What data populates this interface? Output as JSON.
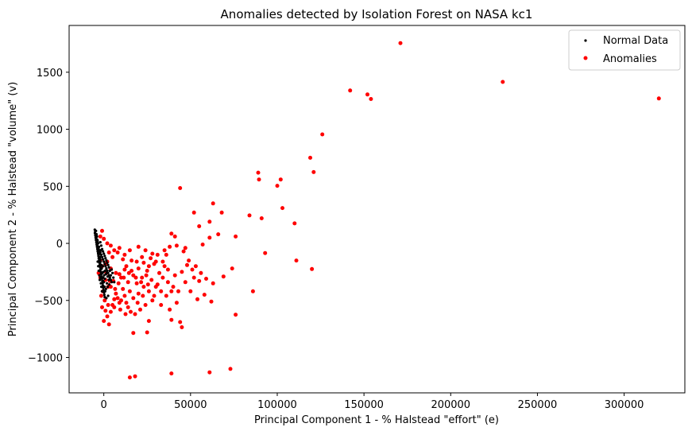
{
  "chart_data": {
    "type": "scatter",
    "title": "Anomalies detected by Isolation Forest on NASA kc1",
    "xlabel": "Principal Component 1 - % Halstead \"effort\" (e)",
    "ylabel": "Principal Component 2 - % Halstead \"volume\" (v)",
    "xlim": [
      -20000,
      335000
    ],
    "ylim": [
      -1310,
      1910
    ],
    "x_ticks": [
      0,
      50000,
      100000,
      150000,
      200000,
      250000,
      300000
    ],
    "x_tick_labels": [
      "0",
      "50000",
      "100000",
      "150000",
      "200000",
      "250000",
      "300000"
    ],
    "y_ticks": [
      -1000,
      -500,
      0,
      500,
      1000,
      1500
    ],
    "y_tick_labels": [
      "−1000",
      "−500",
      "0",
      "500",
      "1000",
      "1500"
    ],
    "grid": false,
    "legend_position": "top-right",
    "series": [
      {
        "name": "Normal Data",
        "color": "#000000",
        "points": [
          [
            -5200,
            120
          ],
          [
            -5000,
            100
          ],
          [
            -4800,
            80
          ],
          [
            -4600,
            60
          ],
          [
            -4400,
            40
          ],
          [
            -4200,
            20
          ],
          [
            -4000,
            0
          ],
          [
            -3800,
            -20
          ],
          [
            -3600,
            -40
          ],
          [
            -3400,
            -60
          ],
          [
            -3200,
            -80
          ],
          [
            -3000,
            -100
          ],
          [
            -2800,
            -120
          ],
          [
            -2600,
            -140
          ],
          [
            -2400,
            -160
          ],
          [
            -2200,
            -180
          ],
          [
            -2000,
            -200
          ],
          [
            -5100,
            90
          ],
          [
            -4900,
            70
          ],
          [
            -4700,
            50
          ],
          [
            -4500,
            30
          ],
          [
            -4300,
            10
          ],
          [
            -4100,
            -10
          ],
          [
            -3900,
            -30
          ],
          [
            -3700,
            -50
          ],
          [
            -3500,
            -70
          ],
          [
            -3300,
            -90
          ],
          [
            -3100,
            -110
          ],
          [
            -2900,
            -130
          ],
          [
            -2700,
            -150
          ],
          [
            -2500,
            -170
          ],
          [
            -2300,
            -190
          ],
          [
            -2100,
            -210
          ],
          [
            -1900,
            -230
          ],
          [
            -1700,
            -250
          ],
          [
            -1500,
            -270
          ],
          [
            -1300,
            -290
          ],
          [
            -1100,
            -310
          ],
          [
            -900,
            -330
          ],
          [
            -700,
            -350
          ],
          [
            -500,
            -370
          ],
          [
            -300,
            -390
          ],
          [
            -100,
            -410
          ],
          [
            100,
            -430
          ],
          [
            300,
            -450
          ],
          [
            500,
            -470
          ],
          [
            1500,
            -480
          ],
          [
            2500,
            -460
          ],
          [
            -3000,
            -40
          ],
          [
            -2500,
            -60
          ],
          [
            -2000,
            -80
          ],
          [
            -1500,
            -100
          ],
          [
            -1000,
            -120
          ],
          [
            -500,
            -140
          ],
          [
            0,
            -160
          ],
          [
            500,
            -180
          ],
          [
            1000,
            -200
          ],
          [
            1500,
            -220
          ],
          [
            2000,
            -240
          ],
          [
            2500,
            -260
          ],
          [
            3000,
            -280
          ],
          [
            3500,
            -300
          ],
          [
            4000,
            -320
          ],
          [
            4500,
            -340
          ],
          [
            -2000,
            10
          ],
          [
            -1500,
            -20
          ],
          [
            -1000,
            -50
          ],
          [
            -500,
            -70
          ],
          [
            0,
            -90
          ],
          [
            500,
            -110
          ],
          [
            1000,
            -130
          ],
          [
            1500,
            -150
          ],
          [
            2000,
            -170
          ],
          [
            2500,
            -190
          ],
          [
            3000,
            -210
          ],
          [
            -4500,
            110
          ],
          [
            -4200,
            80
          ],
          [
            -3900,
            60
          ],
          [
            -3600,
            20
          ],
          [
            -3300,
            0
          ],
          [
            -2800,
            -30
          ],
          [
            -2200,
            -120
          ],
          [
            -1800,
            -160
          ],
          [
            -1200,
            -220
          ],
          [
            -800,
            -260
          ],
          [
            -400,
            -300
          ],
          [
            0,
            -340
          ],
          [
            400,
            -380
          ],
          [
            800,
            -420
          ],
          [
            1200,
            -400
          ],
          [
            -3500,
            -160
          ],
          [
            -3200,
            -200
          ],
          [
            -2900,
            -240
          ],
          [
            -2600,
            -280
          ],
          [
            -2300,
            -320
          ],
          [
            -2000,
            -300
          ],
          [
            -1700,
            -350
          ],
          [
            -1400,
            -380
          ],
          [
            -1100,
            -420
          ],
          [
            5000,
            -260
          ],
          [
            5500,
            -300
          ],
          [
            6000,
            -340
          ],
          [
            -1500,
            -260
          ],
          [
            -1000,
            -300
          ],
          [
            -500,
            -330
          ],
          [
            -200,
            -250
          ],
          [
            200,
            -280
          ],
          [
            600,
            -310
          ],
          [
            1800,
            -350
          ],
          [
            2200,
            -380
          ],
          [
            -2700,
            -60
          ],
          [
            -2400,
            -90
          ],
          [
            -2100,
            -140
          ],
          [
            -1800,
            -60
          ],
          [
            -1400,
            -190
          ],
          [
            -3700,
            30
          ],
          [
            -3400,
            -30
          ],
          [
            -3100,
            -70
          ],
          [
            -4400,
            50
          ],
          [
            -4100,
            20
          ],
          [
            3500,
            -240
          ],
          [
            4000,
            -280
          ],
          [
            4500,
            -230
          ],
          [
            2800,
            -320
          ],
          [
            3200,
            -360
          ],
          [
            1700,
            -260
          ],
          [
            2200,
            -290
          ],
          [
            800,
            -240
          ],
          [
            1200,
            -270
          ],
          [
            -600,
            -200
          ]
        ]
      },
      {
        "name": "Anomalies",
        "color": "#ff0000",
        "points": [
          [
            171000,
            1755
          ],
          [
            230000,
            1415
          ],
          [
            320000,
            1270
          ],
          [
            142000,
            1340
          ],
          [
            152000,
            1305
          ],
          [
            154000,
            1265
          ],
          [
            126000,
            955
          ],
          [
            119000,
            750
          ],
          [
            121000,
            625
          ],
          [
            89000,
            620
          ],
          [
            89500,
            560
          ],
          [
            102000,
            560
          ],
          [
            100000,
            505
          ],
          [
            103000,
            310
          ],
          [
            44000,
            485
          ],
          [
            52000,
            270
          ],
          [
            63000,
            350
          ],
          [
            68000,
            270
          ],
          [
            84000,
            245
          ],
          [
            91000,
            220
          ],
          [
            110000,
            175
          ],
          [
            61000,
            190
          ],
          [
            55000,
            150
          ],
          [
            66000,
            80
          ],
          [
            76000,
            60
          ],
          [
            39000,
            85
          ],
          [
            41000,
            60
          ],
          [
            61000,
            50
          ],
          [
            57000,
            -10
          ],
          [
            47000,
            -40
          ],
          [
            93000,
            -85
          ],
          [
            111000,
            -150
          ],
          [
            120000,
            -225
          ],
          [
            74000,
            -220
          ],
          [
            69000,
            -290
          ],
          [
            86000,
            -420
          ],
          [
            76000,
            -625
          ],
          [
            61000,
            -1130
          ],
          [
            73000,
            -1100
          ],
          [
            39000,
            -1140
          ],
          [
            15000,
            -1175
          ],
          [
            18000,
            -1165
          ],
          [
            17000,
            -785
          ],
          [
            25000,
            -780
          ],
          [
            26000,
            -680
          ],
          [
            39000,
            -670
          ],
          [
            44000,
            -690
          ],
          [
            45000,
            -735
          ],
          [
            54000,
            -490
          ],
          [
            58000,
            -450
          ],
          [
            62000,
            -510
          ],
          [
            50000,
            -420
          ],
          [
            47000,
            -340
          ],
          [
            52000,
            -300
          ],
          [
            41000,
            -280
          ],
          [
            37000,
            -230
          ],
          [
            34000,
            -160
          ],
          [
            36000,
            -100
          ],
          [
            29000,
            -180
          ],
          [
            25000,
            -240
          ],
          [
            22000,
            -300
          ],
          [
            19000,
            -350
          ],
          [
            15000,
            -420
          ],
          [
            12000,
            -460
          ],
          [
            9000,
            -520
          ],
          [
            6000,
            -560
          ],
          [
            4000,
            -600
          ],
          [
            2000,
            -640
          ],
          [
            0,
            -680
          ],
          [
            3000,
            -710
          ],
          [
            -1000,
            -560
          ],
          [
            1000,
            -590
          ],
          [
            5000,
            -540
          ],
          [
            8000,
            -480
          ],
          [
            11000,
            -400
          ],
          [
            14000,
            -340
          ],
          [
            17000,
            -280
          ],
          [
            20000,
            -220
          ],
          [
            23000,
            -170
          ],
          [
            27000,
            -130
          ],
          [
            31000,
            -100
          ],
          [
            35000,
            -60
          ],
          [
            38000,
            -30
          ],
          [
            42000,
            -20
          ],
          [
            46000,
            -70
          ],
          [
            49000,
            -150
          ],
          [
            53000,
            -200
          ],
          [
            56000,
            -260
          ],
          [
            59000,
            -310
          ],
          [
            63000,
            -350
          ],
          [
            30000,
            -380
          ],
          [
            33000,
            -420
          ],
          [
            36000,
            -460
          ],
          [
            28000,
            -500
          ],
          [
            24000,
            -540
          ],
          [
            21000,
            -580
          ],
          [
            18000,
            -620
          ],
          [
            14000,
            -560
          ],
          [
            10000,
            -500
          ],
          [
            7000,
            -440
          ],
          [
            4000,
            -380
          ],
          [
            1000,
            -320
          ],
          [
            -2000,
            -300
          ],
          [
            -3000,
            -260
          ],
          [
            -1000,
            -200
          ],
          [
            2000,
            -160
          ],
          [
            5000,
            -120
          ],
          [
            8000,
            -80
          ],
          [
            11000,
            -140
          ],
          [
            13000,
            -200
          ],
          [
            16000,
            -240
          ],
          [
            19000,
            -160
          ],
          [
            22000,
            -120
          ],
          [
            26000,
            -200
          ],
          [
            32000,
            -260
          ],
          [
            40000,
            -380
          ],
          [
            43000,
            -420
          ],
          [
            45000,
            -250
          ],
          [
            48000,
            -190
          ],
          [
            51000,
            -230
          ],
          [
            55000,
            -330
          ],
          [
            42000,
            -520
          ],
          [
            38000,
            -580
          ],
          [
            33000,
            -540
          ],
          [
            29000,
            -460
          ],
          [
            26000,
            -420
          ],
          [
            23000,
            -380
          ],
          [
            20000,
            -440
          ],
          [
            17000,
            -480
          ],
          [
            13000,
            -520
          ],
          [
            10000,
            -300
          ],
          [
            7000,
            -260
          ],
          [
            4000,
            -220
          ],
          [
            1000,
            -180
          ],
          [
            -2000,
            -150
          ],
          [
            3000,
            -80
          ],
          [
            6000,
            -60
          ],
          [
            9000,
            -40
          ],
          [
            12000,
            -100
          ],
          [
            15000,
            -60
          ],
          [
            -1000,
            110
          ],
          [
            -2000,
            60
          ],
          [
            0,
            40
          ],
          [
            2000,
            0
          ],
          [
            4000,
            -20
          ],
          [
            1500,
            -260
          ],
          [
            3500,
            -330
          ],
          [
            6500,
            -400
          ],
          [
            8500,
            -350
          ],
          [
            11500,
            -300
          ],
          [
            14500,
            -260
          ],
          [
            18500,
            -300
          ],
          [
            21500,
            -340
          ],
          [
            24500,
            -280
          ],
          [
            27500,
            -320
          ],
          [
            31000,
            -360
          ],
          [
            34000,
            -300
          ],
          [
            37000,
            -340
          ],
          [
            39000,
            -420
          ],
          [
            35000,
            -200
          ],
          [
            30000,
            -160
          ],
          [
            28000,
            -90
          ],
          [
            24000,
            -60
          ],
          [
            20000,
            -30
          ],
          [
            16000,
            -150
          ],
          [
            12000,
            -230
          ],
          [
            9000,
            -270
          ],
          [
            5500,
            -330
          ],
          [
            2500,
            -380
          ],
          [
            -500,
            -420
          ],
          [
            -1500,
            -460
          ],
          [
            500,
            -500
          ],
          [
            2500,
            -540
          ],
          [
            6000,
            -490
          ],
          [
            9500,
            -580
          ],
          [
            12500,
            -620
          ],
          [
            15500,
            -600
          ],
          [
            19500,
            -520
          ],
          [
            22500,
            -460
          ],
          [
            25500,
            -360
          ]
        ]
      }
    ]
  }
}
